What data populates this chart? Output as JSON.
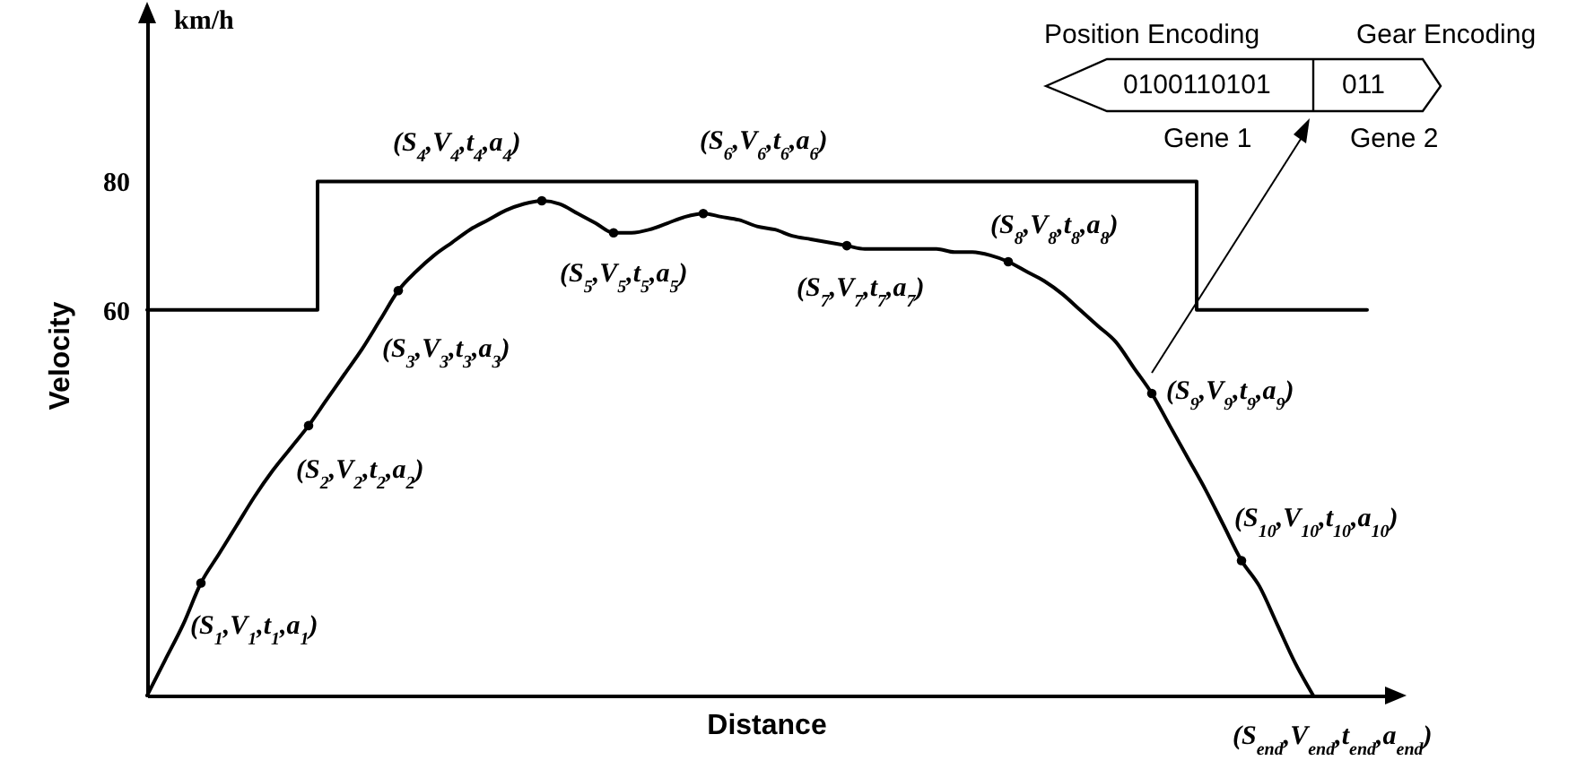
{
  "chart_data": {
    "type": "line",
    "xlabel": "Distance",
    "ylabel": "Velocity",
    "categories": [
      null,
      null,
      null,
      null,
      null,
      null,
      null,
      null,
      null,
      null,
      null,
      null,
      null,
      null,
      null,
      null,
      null,
      null,
      null,
      null,
      null,
      null,
      null,
      null,
      null,
      null,
      null,
      null,
      null,
      null,
      null,
      null,
      null,
      null,
      null,
      null,
      null,
      null,
      null,
      null,
      null,
      null,
      null,
      null,
      null,
      null,
      null,
      null,
      null,
      null,
      null,
      null,
      null,
      null,
      null,
      null,
      null,
      null,
      null,
      null,
      null,
      null,
      null,
      null,
      null,
      null,
      null,
      null,
      null,
      null
    ],
    "ylim": [
      0,
      106
    ],
    "yticks": [
      60,
      80
    ],
    "tick_labels": "y",
    "line_style": "solid",
    "annotations": [
      "km/h",
      "Position Encoding",
      "Gear Encoding",
      "0100110101",
      "011",
      "Gene 1",
      "Gene 2"
    ],
    "series": [
      {
        "type": "step",
        "color": "#000000",
        "values": [
          60,
          60,
          60,
          60,
          60,
          60,
          60,
          60,
          60,
          60,
          80,
          80,
          80,
          80,
          80,
          80,
          80,
          80,
          80,
          80,
          80,
          80,
          80,
          80,
          80,
          80,
          80,
          80,
          80,
          80,
          80,
          80,
          80,
          80,
          80,
          80,
          80,
          80,
          80,
          80,
          80,
          80,
          80,
          80,
          80,
          80,
          80,
          80,
          80,
          80,
          80,
          80,
          80,
          80,
          80,
          80,
          80,
          80,
          80,
          60,
          60,
          60,
          60,
          60,
          60,
          60,
          60,
          60,
          60,
          null
        ]
      },
      {
        "color": "#000000",
        "values": [
          0,
          5.5,
          11,
          17.5,
          22,
          26.5,
          31,
          35,
          38.5,
          42,
          46,
          50,
          54,
          58.5,
          63,
          66,
          68.5,
          70.5,
          72.5,
          74,
          75.5,
          76.5,
          77,
          76.5,
          75,
          73.5,
          72,
          72,
          72.5,
          73.5,
          74.5,
          75,
          74.5,
          74,
          73,
          72.5,
          71.5,
          71,
          70.5,
          70,
          69.5,
          69.5,
          69.5,
          69.5,
          69.5,
          69,
          69,
          68.5,
          67.5,
          66,
          64.5,
          62.5,
          60,
          57.5,
          55,
          51,
          47,
          42,
          37,
          32,
          26.5,
          21,
          17,
          11,
          5,
          0,
          null,
          null,
          null,
          null
        ],
        "value_labels": [
          null,
          null,
          null,
          "(S$_{1}$,V$_{1}$,t$_{1}$,a$_{1}$)",
          null,
          null,
          null,
          null,
          null,
          "(S$_{2}$,V$_{2}$,t$_{2}$,a$_{2}$)",
          null,
          null,
          null,
          null,
          "(S$_{3}$,V$_{3}$,t$_{3}$,a$_{3}$)",
          null,
          null,
          null,
          null,
          null,
          null,
          null,
          "(S$_{4}$,V$_{4}$,t$_{4}$,a$_{4}$)",
          null,
          null,
          null,
          "(S$_{5}$,V$_{5}$,t$_{5}$,a$_{5}$)",
          null,
          null,
          null,
          null,
          "(S$_{6}$,V$_{6}$,t$_{6}$,a$_{6}$)",
          null,
          null,
          null,
          null,
          null,
          null,
          null,
          "(S$_{7}$,V$_{7}$,t$_{7}$,a$_{7}$)",
          null,
          null,
          null,
          null,
          null,
          null,
          null,
          null,
          "(S$_{8}$,V$_{8}$,t$_{8}$,a$_{8}$)",
          null,
          null,
          null,
          null,
          null,
          null,
          null,
          "(S$_{9}$,V$_{9}$,t$_{9}$,a$_{9}$)",
          null,
          null,
          null,
          null,
          "(S$_{10}$,V$_{10}$,t$_{10}$,a$_{10}$)",
          null,
          null,
          null,
          "(S$_{end}$,V$_{end}$,t$_{end}$,a$_{end}$)",
          null,
          null,
          null,
          null
        ]
      },
      {
        "type": "scatter",
        "marker": "circle",
        "color": "#000000",
        "values": [
          null,
          null,
          null,
          17.5,
          null,
          null,
          null,
          null,
          null,
          42,
          null,
          null,
          null,
          null,
          63,
          null,
          null,
          null,
          null,
          null,
          null,
          null,
          77,
          null,
          null,
          null,
          72,
          null,
          null,
          null,
          null,
          75,
          null,
          null,
          null,
          null,
          null,
          null,
          null,
          70,
          null,
          null,
          null,
          null,
          null,
          null,
          null,
          null,
          67.5,
          null,
          null,
          null,
          null,
          null,
          null,
          null,
          47,
          null,
          null,
          null,
          null,
          21,
          null,
          null,
          null,
          null,
          null,
          null,
          null,
          null
        ]
      }
    ]
  }
}
